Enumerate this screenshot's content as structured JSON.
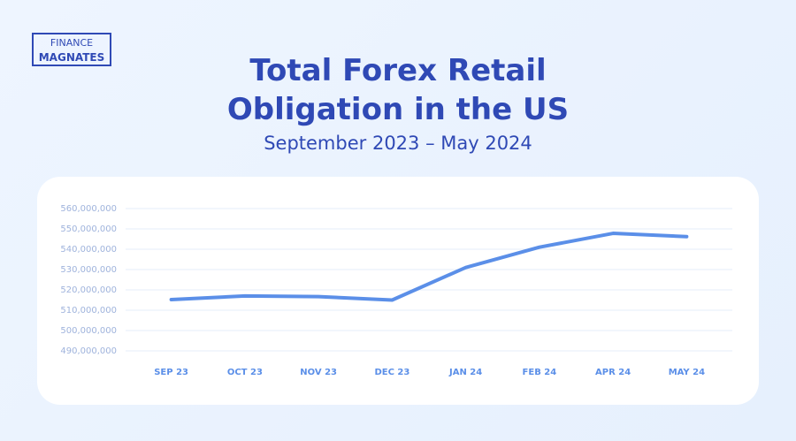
{
  "logo": {
    "line1": "FINANCE",
    "line2": "MAGNATES"
  },
  "chart_data": {
    "type": "line",
    "title": "Total Forex Retail Obligation in the US",
    "subtitle": "September 2023 – May 2024",
    "categories": [
      "SEP 23",
      "OCT 23",
      "NOV 23",
      "DEC 23",
      "JAN 24",
      "FEB 24",
      "APR 24",
      "MAY 24"
    ],
    "series": [
      {
        "name": "Total Forex Retail Obligation",
        "color": "#5b8fe8",
        "values": [
          515200000,
          517000000,
          516700000,
          515000000,
          531000000,
          541000000,
          547800000,
          546200000
        ]
      }
    ],
    "ylim": [
      490000000,
      560000000
    ],
    "yticks": [
      {
        "value": 490000000,
        "label": "490,000,000"
      },
      {
        "value": 500000000,
        "label": "500,000,000"
      },
      {
        "value": 510000000,
        "label": "510,000,000"
      },
      {
        "value": 520000000,
        "label": "520,000,000"
      },
      {
        "value": 530000000,
        "label": "530,000,000"
      },
      {
        "value": 540000000,
        "label": "540,000,000"
      },
      {
        "value": 550000000,
        "label": "550,000,000"
      },
      {
        "value": 560000000,
        "label": "560,000,000"
      }
    ],
    "grid": true
  }
}
